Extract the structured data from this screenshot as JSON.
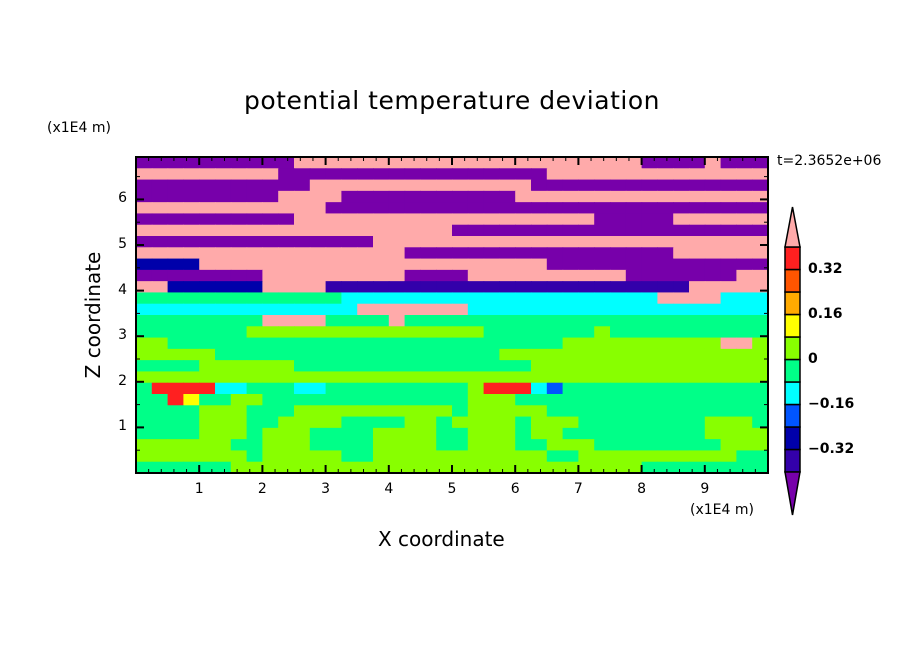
{
  "chart_data": {
    "type": "heatmap",
    "title": "potential temperature deviation",
    "xlabel": "X coordinate",
    "ylabel": "Z coordinate",
    "x_unit": "(x1E4 m)",
    "y_unit": "(x1E4 m)",
    "time_label": "t=2.3652e+06",
    "xlim": [
      0,
      10
    ],
    "ylim": [
      0,
      6.93
    ],
    "x_ticks": [
      "1",
      "2",
      "3",
      "4",
      "5",
      "6",
      "7",
      "8",
      "9"
    ],
    "y_ticks": [
      "1",
      "2",
      "3",
      "4",
      "5",
      "6"
    ],
    "colorbar": {
      "levels": [
        -0.4,
        -0.32,
        -0.24,
        -0.16,
        -0.08,
        0,
        0.08,
        0.16,
        0.24,
        0.32,
        0.4
      ],
      "tick_labels": [
        "0.32",
        "0.16",
        "0",
        "−0.16",
        "−0.32"
      ],
      "tick_values": [
        0.32,
        0.16,
        0,
        -0.16,
        -0.32
      ],
      "extend": "both",
      "colors": {
        "V": "#7700aa",
        "I": "#3300aa",
        "D": "#0000aa",
        "B": "#0055ff",
        "C": "#00ffff",
        "G": "#00ff88",
        "L": "#88ff00",
        "Y": "#ffff00",
        "A": "#ffaa00",
        "O": "#ff5500",
        "R": "#ff2020",
        "P": "#ffaaaa"
      },
      "order_bottom_to_top": [
        "V",
        "I",
        "D",
        "B",
        "C",
        "G",
        "L",
        "Y",
        "A",
        "O",
        "R",
        "P"
      ]
    },
    "grid_note": "coarse level-class grid, rows from top (z=6.93) to bottom (z=0), columns x=0..10",
    "grid": [
      "VVVVVVVVVVPPPPPPPPPPPPPPPPPPPPPPVVVVPVVV",
      "PPPPPPPPPVVVVVVVVVVVVVVVVVPPPPPPPPPPPPPP",
      "VVVVVVVVVVVPPPPPPPPPPPPPPVVVVVVVVVVVVVVV",
      "VVVVVVVVVPPPPVVVVVVVVVVVPPPPPPPPPPPPPPPP",
      "PPPPPPPPPPPPVVVVVVVVVVVVVVVVVVVVVVVVVVVV",
      "VVVVVVVVVVPPPPPPPPPPPPPPPPPPPVVVVVPPPPPP",
      "PPPPPPPPPPPPPPPPPPPPVVVVVVVVVVVVVVVVVVVV",
      "VVVVVVVVVVVVVVVPPPPPPPPPPPPPPPPPPPPPPPPP",
      "PPPPPPPPPPPPPPPPPVVVVVVVVVVVVVVVVVPPPPPP",
      "DDDDPPPPPPPPPPPPPPPPPPPPPPVVVVVVVVVVVVVV",
      "VVVVVVVVPPPPPPPPPVVVVPPPPPPPPPPVVVVVVVPP",
      "PPDDDDDDPPPPIIIIIIIIIIIIIIIIIIIIIIIPPPPP",
      "GGGGGGGGGGGGGCCCCCCCCCCCCCCCCCCCCPPPPCCC",
      "CCCCCCCCCCCCCCPPPPPPPCCCCCCCCCCCCCCCCCCC",
      "GGGGGGGGPPPPGGGGPGGGGGGGGGGGGGGGGGGGGGGG",
      "GGGGGGGLLLLLLLLLLLLLLLGGGGGGGLGGGGGGGGGG",
      "LLGGGGGGGGGGGGGGGGGGGGGGGGGLLLLLLLLLLPPL",
      "LLLLLGGGGGGGGGGGGGGGGGGLLLLLLLLLLLLLLLLL",
      "GGGGLLLLLLGGGGGGGGGGGGGGGLLLLLLLLLLLLLLL",
      "LLLLLLLLLLLLLLLLLLLLLLLLLLLLLLLLLLLLLLLL",
      "GRRRRCCGGGCCGGGGGGGGGLRRRCBGGGGGGGGGGGGG",
      "GGRYGGLLGGGGGGGGGGGGGLLLGGGGGGGGGGGGGGGG",
      "GGGGLLLGGGLLLLLLLLLLGLLLLLGGGGGGGGGGGGGG",
      "GGGGLLLGGLLLLGGGGLLGLLLLGLLLGGGGGGGGLLLG",
      "GGGGLLLGLLLGGGGLLLLGGLLLGLLGGGGGGGGGLLLL",
      "LLLLLLGGLLLGGGGLLLLGGLLLGGLLLGGGGGGGGLLL",
      "LLLLLLLGLLLLLGGLLLLLLLLLLLGGLLLLLLLLLLGG",
      "GGGGGGLLLLLLLLLLLLLLLLLLLLLLLLLLGGGGGGGG"
    ]
  }
}
